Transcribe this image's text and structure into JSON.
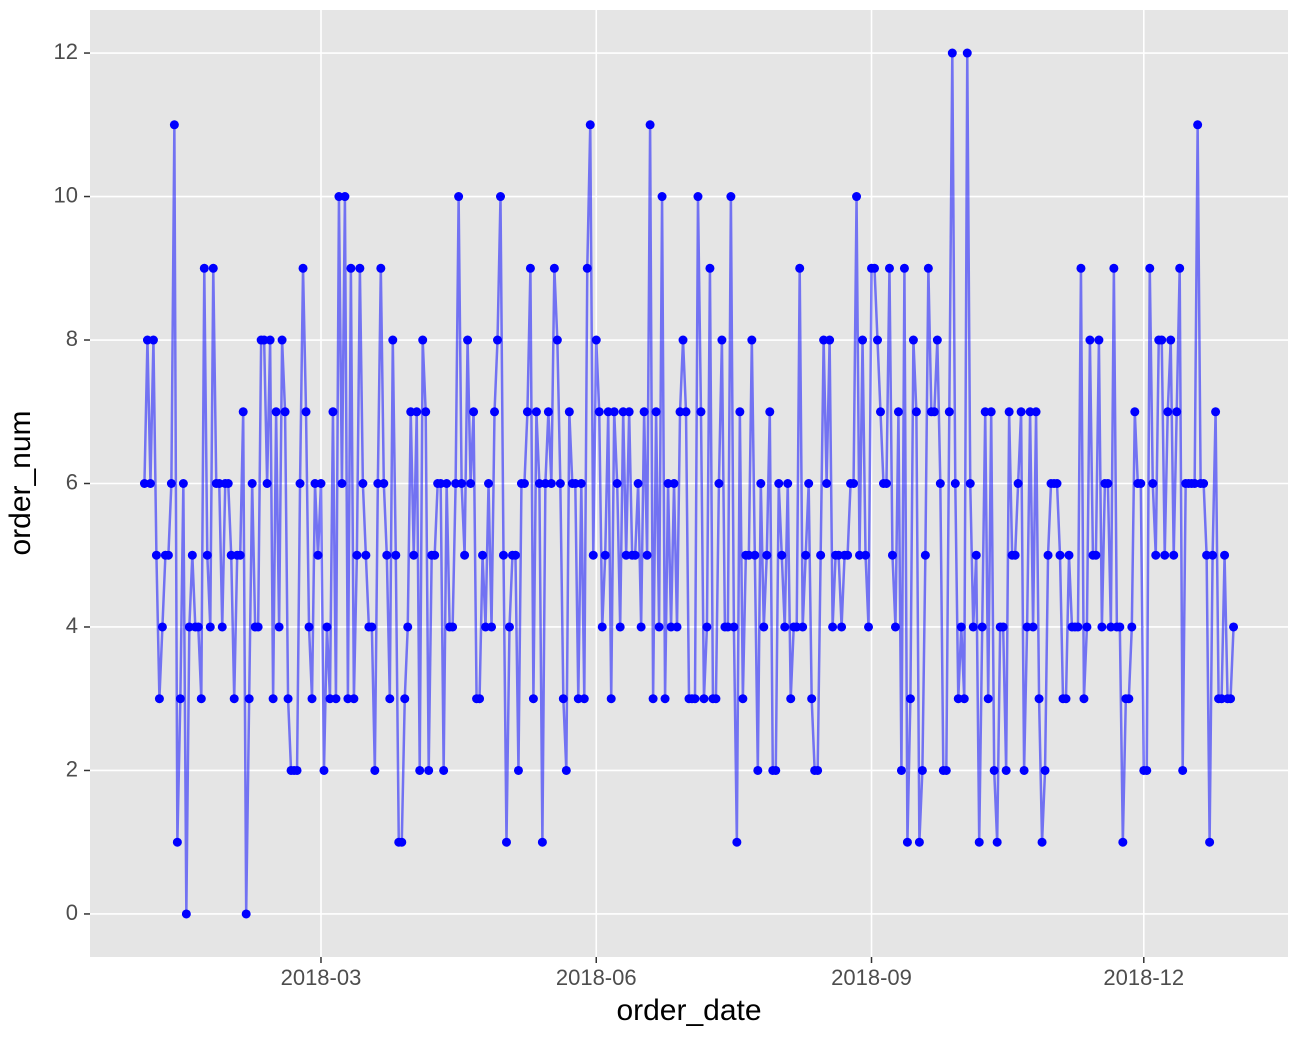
{
  "chart_data": {
    "type": "line",
    "x_label": "order_date",
    "y_label": "order_num",
    "grid": true,
    "xlim": [
      -18.2,
      382.2
    ],
    "xticks": [
      {
        "value": 59,
        "label": "2018-03"
      },
      {
        "value": 151,
        "label": "2018-06"
      },
      {
        "value": 243,
        "label": "2018-09"
      },
      {
        "value": 334,
        "label": "2018-12"
      }
    ],
    "ylim": [
      -0.6,
      12.6
    ],
    "yticks": [
      0,
      2,
      4,
      6,
      8,
      10,
      12
    ],
    "series": [
      {
        "color": "#0000ff",
        "values": [
          6,
          8,
          6,
          8,
          5,
          3,
          4,
          5,
          5,
          6,
          11,
          1,
          3,
          6,
          0,
          4,
          5,
          4,
          4,
          3,
          9,
          5,
          4,
          9,
          6,
          6,
          4,
          6,
          6,
          5,
          3,
          5,
          5,
          7,
          0,
          3,
          6,
          4,
          4,
          8,
          8,
          6,
          8,
          3,
          7,
          4,
          8,
          7,
          3,
          2,
          2,
          2,
          6,
          9,
          7,
          4,
          3,
          6,
          5,
          6,
          2,
          4,
          3,
          7,
          3,
          10,
          6,
          10,
          3,
          9,
          3,
          5,
          9,
          6,
          5,
          4,
          4,
          2,
          6,
          9,
          6,
          5,
          3,
          8,
          5,
          1,
          1,
          3,
          4,
          7,
          5,
          7,
          2,
          8,
          7,
          2,
          5,
          5,
          6,
          6,
          2,
          6,
          4,
          4,
          6,
          10,
          6,
          5,
          8,
          6,
          7,
          3,
          3,
          5,
          4,
          6,
          4,
          7,
          8,
          10,
          5,
          1,
          4,
          5,
          5,
          2,
          6,
          6,
          7,
          9,
          3,
          7,
          6,
          1,
          6,
          7,
          6,
          9,
          8,
          6,
          3,
          2,
          7,
          6,
          6,
          3,
          6,
          3,
          9,
          11,
          5,
          8,
          7,
          4,
          5,
          7,
          3,
          7,
          6,
          4,
          7,
          5,
          7,
          5,
          5,
          6,
          4,
          7,
          5,
          11,
          3,
          7,
          4,
          10,
          3,
          6,
          4,
          6,
          4,
          7,
          8,
          7,
          3,
          3,
          3,
          10,
          7,
          3,
          4,
          9,
          3,
          3,
          6,
          8,
          4,
          4,
          10,
          4,
          1,
          7,
          3,
          5,
          5,
          8,
          5,
          2,
          6,
          4,
          5,
          7,
          2,
          2,
          6,
          5,
          4,
          6,
          3,
          4,
          4,
          9,
          4,
          5,
          6,
          3,
          2,
          2,
          5,
          8,
          6,
          8,
          4,
          5,
          5,
          4,
          5,
          5,
          6,
          6,
          10,
          5,
          8,
          5,
          4,
          9,
          9,
          8,
          7,
          6,
          6,
          9,
          5,
          4,
          7,
          2,
          9,
          1,
          3,
          8,
          7,
          1,
          2,
          5,
          9,
          7,
          7,
          8,
          6,
          2,
          2,
          7,
          12,
          6,
          3,
          4,
          3,
          12,
          6,
          4,
          5,
          1,
          4,
          7,
          3,
          7,
          2,
          1,
          4,
          4,
          2,
          7,
          5,
          5,
          6,
          7,
          2,
          4,
          7,
          4,
          7,
          3,
          1,
          2,
          5,
          6,
          6,
          6,
          5,
          3,
          3,
          5,
          4,
          4,
          4,
          9,
          3,
          4,
          8,
          5,
          5,
          8,
          4,
          6,
          6,
          4,
          9,
          4,
          4,
          1,
          3,
          3,
          4,
          7,
          6,
          6,
          2,
          2,
          9,
          6,
          5,
          8,
          8,
          5,
          7,
          8,
          5,
          7,
          9,
          2,
          6,
          6,
          6,
          6,
          11,
          6,
          6,
          5,
          1,
          5,
          7,
          3,
          3,
          5,
          3,
          3,
          4
        ]
      }
    ]
  }
}
